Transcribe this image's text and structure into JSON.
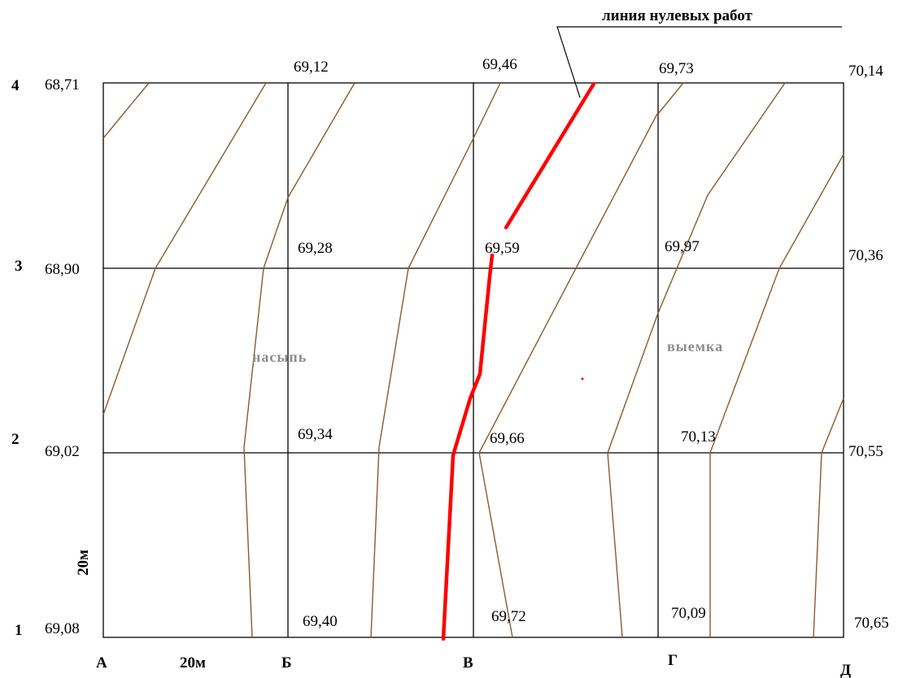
{
  "zero_line_label": "линия нулевых работ",
  "fill_label": "насыпь",
  "cut_label": "выемка",
  "scale_x_label": "20м",
  "scale_y_label": "20м",
  "columns": [
    "А",
    "Б",
    "В",
    "Г",
    "Д"
  ],
  "rows": [
    "4",
    "3",
    "2",
    "1"
  ],
  "elevations": {
    "r4": [
      "68,71",
      "69,12",
      "69,46",
      "69,73",
      "70,14"
    ],
    "r3": [
      "68,90",
      "69,28",
      "69,59",
      "69,97",
      "70,36"
    ],
    "r2": [
      "69,02",
      "69,34",
      "69,66",
      "70,13",
      "70,55"
    ],
    "r1": [
      "69,08",
      "69,40",
      "69,72",
      "70,09",
      "70,65"
    ]
  },
  "colors": {
    "grid": "#000000",
    "contour": "#8b5a2b",
    "zero_line": "#ff0000",
    "area_labels": "#8c8c8c"
  }
}
